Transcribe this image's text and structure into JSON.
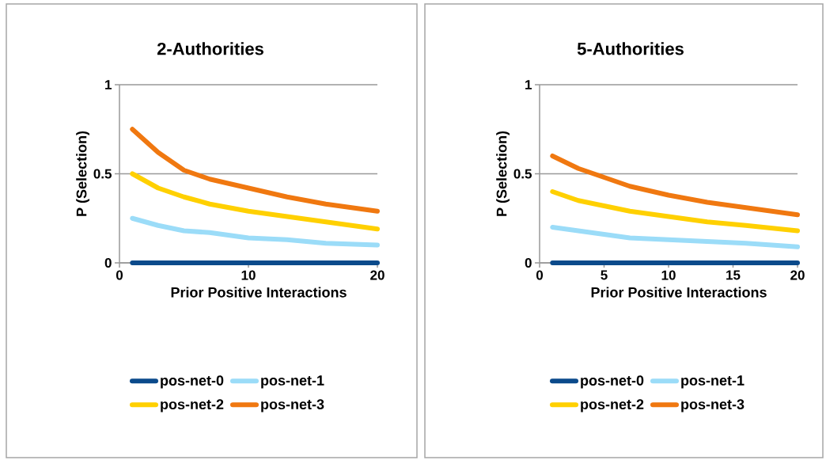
{
  "chart_data": [
    {
      "type": "line",
      "title": "2-Authorities",
      "xlabel": "Prior Positive Interactions",
      "ylabel": "P (Selection)",
      "x": [
        1,
        3,
        5,
        7,
        10,
        13,
        16,
        20
      ],
      "xlim": [
        0,
        20
      ],
      "ylim": [
        0,
        1
      ],
      "xticks": [
        0,
        10,
        20
      ],
      "yticks": [
        0,
        0.5,
        1
      ],
      "grid": "y",
      "legend": "bottom",
      "marker": "none",
      "series": [
        {
          "name": "pos-net-0",
          "color": "#0b4a8b",
          "values": [
            0,
            0,
            0,
            0,
            0,
            0,
            0,
            0
          ]
        },
        {
          "name": "pos-net-1",
          "color": "#9bdcf8",
          "values": [
            0.25,
            0.21,
            0.18,
            0.17,
            0.14,
            0.13,
            0.11,
            0.1
          ]
        },
        {
          "name": "pos-net-2",
          "color": "#ffd000",
          "values": [
            0.5,
            0.42,
            0.37,
            0.33,
            0.29,
            0.26,
            0.23,
            0.19
          ]
        },
        {
          "name": "pos-net-3",
          "color": "#f07810",
          "values": [
            0.75,
            0.62,
            0.52,
            0.47,
            0.42,
            0.37,
            0.33,
            0.29
          ]
        }
      ]
    },
    {
      "type": "line",
      "title": "5-Authorities",
      "xlabel": "Prior Positive Interactions",
      "ylabel": "P (Selection)",
      "x": [
        1,
        3,
        5,
        7,
        10,
        13,
        16,
        20
      ],
      "xlim": [
        0,
        20
      ],
      "ylim": [
        0,
        1
      ],
      "xticks": [
        0,
        5,
        10,
        15,
        20
      ],
      "yticks": [
        0,
        0.5,
        1
      ],
      "grid": "y",
      "legend": "bottom",
      "marker": "none",
      "series": [
        {
          "name": "pos-net-0",
          "color": "#0b4a8b",
          "values": [
            0,
            0,
            0,
            0,
            0,
            0,
            0,
            0
          ]
        },
        {
          "name": "pos-net-1",
          "color": "#9bdcf8",
          "values": [
            0.2,
            0.18,
            0.16,
            0.14,
            0.13,
            0.12,
            0.11,
            0.09
          ]
        },
        {
          "name": "pos-net-2",
          "color": "#ffd000",
          "values": [
            0.4,
            0.35,
            0.32,
            0.29,
            0.26,
            0.23,
            0.21,
            0.18
          ]
        },
        {
          "name": "pos-net-3",
          "color": "#f07810",
          "values": [
            0.6,
            0.53,
            0.48,
            0.43,
            0.38,
            0.34,
            0.31,
            0.27
          ]
        }
      ]
    }
  ]
}
